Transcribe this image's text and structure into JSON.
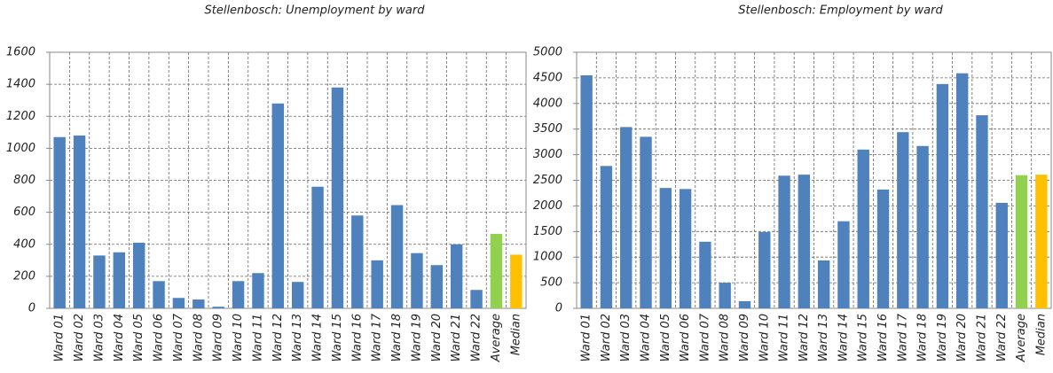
{
  "chart_data": [
    {
      "type": "bar",
      "title": "Stellenbosch: Unemployment by ward",
      "categories": [
        "Ward 01",
        "Ward 02",
        "Ward 03",
        "Ward 04",
        "Ward 05",
        "Ward 06",
        "Ward 07",
        "Ward 08",
        "Ward 09",
        "Ward 10",
        "Ward 11",
        "Ward 12",
        "Ward 13",
        "Ward 14",
        "Ward 15",
        "Ward 16",
        "Ward 17",
        "Ward 18",
        "Ward 19",
        "Ward 20",
        "Ward 21",
        "Ward 22",
        "Average",
        "Median"
      ],
      "values": [
        1070,
        1080,
        330,
        350,
        410,
        170,
        65,
        55,
        10,
        170,
        220,
        1280,
        165,
        760,
        1380,
        580,
        300,
        645,
        345,
        270,
        400,
        115,
        465,
        335
      ],
      "colors": [
        "#4f81bd",
        "#4f81bd",
        "#4f81bd",
        "#4f81bd",
        "#4f81bd",
        "#4f81bd",
        "#4f81bd",
        "#4f81bd",
        "#4f81bd",
        "#4f81bd",
        "#4f81bd",
        "#4f81bd",
        "#4f81bd",
        "#4f81bd",
        "#4f81bd",
        "#4f81bd",
        "#4f81bd",
        "#4f81bd",
        "#4f81bd",
        "#4f81bd",
        "#4f81bd",
        "#4f81bd",
        "#92d050",
        "#ffc000"
      ],
      "ylim": [
        0,
        1600
      ],
      "yticks": [
        0,
        200,
        400,
        600,
        800,
        1000,
        1200,
        1400,
        1600
      ],
      "grid": true
    },
    {
      "type": "bar",
      "title": "Stellenbosch: Employment by ward",
      "categories": [
        "Ward 01",
        "Ward 02",
        "Ward 03",
        "Ward 04",
        "Ward 05",
        "Ward 06",
        "Ward 07",
        "Ward 08",
        "Ward 09",
        "Ward 10",
        "Ward 11",
        "Ward 12",
        "Ward 13",
        "Ward 14",
        "Ward 15",
        "Ward 16",
        "Ward 17",
        "Ward 18",
        "Ward 19",
        "Ward 20",
        "Ward 21",
        "Ward 22",
        "Average",
        "Median"
      ],
      "values": [
        4550,
        2780,
        3540,
        3350,
        2350,
        2330,
        1300,
        500,
        140,
        1490,
        2590,
        2610,
        935,
        1700,
        3100,
        2320,
        3440,
        3170,
        4380,
        4590,
        3770,
        2060,
        2600,
        2610
      ],
      "colors": [
        "#4f81bd",
        "#4f81bd",
        "#4f81bd",
        "#4f81bd",
        "#4f81bd",
        "#4f81bd",
        "#4f81bd",
        "#4f81bd",
        "#4f81bd",
        "#4f81bd",
        "#4f81bd",
        "#4f81bd",
        "#4f81bd",
        "#4f81bd",
        "#4f81bd",
        "#4f81bd",
        "#4f81bd",
        "#4f81bd",
        "#4f81bd",
        "#4f81bd",
        "#4f81bd",
        "#4f81bd",
        "#92d050",
        "#ffc000"
      ],
      "ylim": [
        0,
        5000
      ],
      "yticks": [
        0,
        500,
        1000,
        1500,
        2000,
        2500,
        3000,
        3500,
        4000,
        4500,
        5000
      ],
      "grid": true
    }
  ]
}
